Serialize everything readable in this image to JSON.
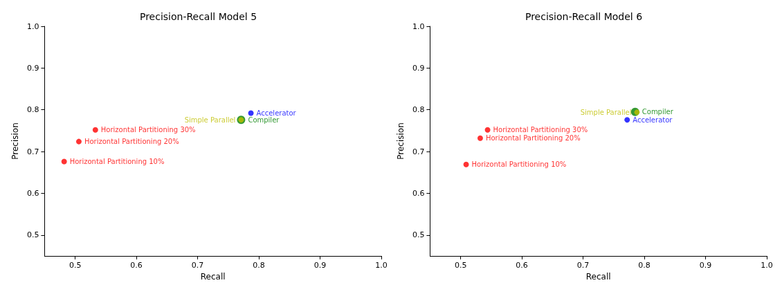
{
  "chart_data": [
    {
      "type": "scatter",
      "title": "Precision-Recall Model 5",
      "xlabel": "Recall",
      "ylabel": "Precision",
      "xlim": [
        0.45,
        1.0
      ],
      "ylim": [
        0.45,
        1.0
      ],
      "xticks": [
        0.5,
        0.6,
        0.7,
        0.8,
        0.9,
        {
          "value": 1,
          "label": "1.0"
        }
      ],
      "yticks": [
        0.5,
        0.6,
        0.7,
        0.8,
        0.9,
        {
          "value": 1,
          "label": "1.0"
        }
      ],
      "grid": false,
      "legend": false,
      "marker": "circle",
      "series": [
        {
          "name": "Horizontal Partitioning 10%",
          "color": "#ff0000",
          "x": [
            0.482
          ],
          "values": [
            0.676
          ]
        },
        {
          "name": "Horizontal Partitioning 20%",
          "color": "#ff0000",
          "x": [
            0.506
          ],
          "values": [
            0.724
          ]
        },
        {
          "name": "Horizontal Partitioning 30%",
          "color": "#ff0000",
          "x": [
            0.533
          ],
          "values": [
            0.752
          ]
        },
        {
          "name": "Accelerator",
          "color": "#0000ff",
          "x": [
            0.787
          ],
          "values": [
            0.792
          ]
        },
        {
          "name": "Compiler",
          "color": "#008000",
          "x": [
            0.771
          ],
          "values": [
            0.776
          ]
        },
        {
          "name": "Simple Parallel",
          "color": "#bfbf00",
          "x": [
            0.771
          ],
          "values": [
            0.776
          ]
        }
      ]
    },
    {
      "type": "scatter",
      "title": "Precision-Recall Model 6",
      "xlabel": "Recall",
      "ylabel": "Precision",
      "xlim": [
        0.45,
        1.0
      ],
      "ylim": [
        0.45,
        1.0
      ],
      "xticks": [
        0.5,
        0.6,
        0.7,
        0.8,
        0.9,
        {
          "value": 1,
          "label": "1.0"
        }
      ],
      "yticks": [
        0.5,
        0.6,
        0.7,
        0.8,
        0.9,
        {
          "value": 1,
          "label": "1.0"
        }
      ],
      "grid": false,
      "legend": false,
      "marker": "circle",
      "series": [
        {
          "name": "Horizontal Partitioning 10%",
          "color": "#ff0000",
          "x": [
            0.509
          ],
          "values": [
            0.669
          ]
        },
        {
          "name": "Horizontal Partitioning 20%",
          "color": "#ff0000",
          "x": [
            0.532
          ],
          "values": [
            0.732
          ]
        },
        {
          "name": "Horizontal Partitioning 30%",
          "color": "#ff0000",
          "x": [
            0.544
          ],
          "values": [
            0.752
          ]
        },
        {
          "name": "Accelerator",
          "color": "#0000ff",
          "x": [
            0.772
          ],
          "values": [
            0.776
          ]
        },
        {
          "name": "Compiler",
          "color": "#008000",
          "x": [
            0.785
          ],
          "values": [
            0.795
          ]
        },
        {
          "name": "Simple Parallel",
          "color": "#bfbf00",
          "x": [
            0.788
          ],
          "values": [
            0.794
          ]
        }
      ]
    }
  ]
}
